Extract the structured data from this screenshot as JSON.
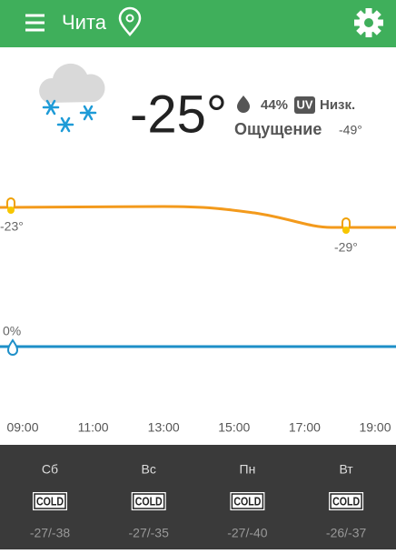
{
  "header": {
    "city": "Чита"
  },
  "current": {
    "temperature": "-25°",
    "humidity": "44%",
    "uv_badge": "UV",
    "uv_level": "Низк.",
    "feels_like_label": "Ощущение",
    "feels_like": "-49°"
  },
  "hourly": {
    "temp_labels": [
      "-23°",
      "-29°"
    ],
    "precip_label": "0%",
    "times": [
      "09:00",
      "11:00",
      "13:00",
      "15:00",
      "17:00",
      "19:00"
    ]
  },
  "daily": [
    {
      "day": "Сб",
      "badge": "COLD",
      "range": "-27/-38"
    },
    {
      "day": "Вс",
      "badge": "COLD",
      "range": "-27/-35"
    },
    {
      "day": "Пн",
      "badge": "COLD",
      "range": "-27/-40"
    },
    {
      "day": "Вт",
      "badge": "COLD",
      "range": "-26/-37"
    }
  ]
}
